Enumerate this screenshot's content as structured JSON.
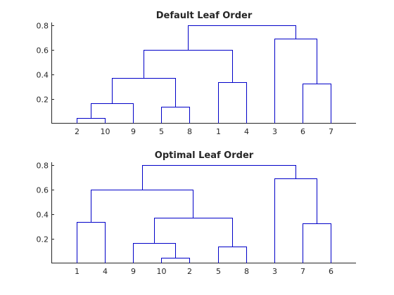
{
  "chart_data": [
    {
      "type": "dendrogram",
      "title": "Default Leaf Order",
      "xlabel": "",
      "ylabel": "",
      "ylim": [
        0.01,
        0.82
      ],
      "yticks": [
        0.2,
        0.4,
        0.6,
        0.8
      ],
      "ytick_labels": [
        "0.2",
        "0.4",
        "0.6",
        "0.8"
      ],
      "leaf_order": [
        "2",
        "10",
        "9",
        "5",
        "8",
        "1",
        "4",
        "3",
        "6",
        "7"
      ],
      "links": [
        {
          "a": 1.0,
          "b": 2.0,
          "ya": 0.0,
          "yb": 0.0,
          "y": 0.05
        },
        {
          "a": 1.5,
          "b": 3.0,
          "ya": 0.05,
          "yb": 0.0,
          "y": 0.17
        },
        {
          "a": 4.0,
          "b": 5.0,
          "ya": 0.0,
          "yb": 0.0,
          "y": 0.14
        },
        {
          "a": 2.25,
          "b": 4.5,
          "ya": 0.17,
          "yb": 0.14,
          "y": 0.37
        },
        {
          "a": 6.0,
          "b": 7.0,
          "ya": 0.0,
          "yb": 0.0,
          "y": 0.34
        },
        {
          "a": 3.375,
          "b": 6.5,
          "ya": 0.37,
          "yb": 0.34,
          "y": 0.6
        },
        {
          "a": 9.0,
          "b": 10.0,
          "ya": 0.0,
          "yb": 0.0,
          "y": 0.33
        },
        {
          "a": 8.0,
          "b": 9.5,
          "ya": 0.0,
          "yb": 0.33,
          "y": 0.69
        },
        {
          "a": 4.9375,
          "b": 8.75,
          "ya": 0.6,
          "yb": 0.69,
          "y": 0.8
        }
      ]
    },
    {
      "type": "dendrogram",
      "title": "Optimal Leaf Order",
      "xlabel": "",
      "ylabel": "",
      "ylim": [
        0.01,
        0.82
      ],
      "yticks": [
        0.2,
        0.4,
        0.6,
        0.8
      ],
      "ytick_labels": [
        "0.2",
        "0.4",
        "0.6",
        "0.8"
      ],
      "leaf_order": [
        "1",
        "4",
        "9",
        "10",
        "2",
        "5",
        "8",
        "3",
        "7",
        "6"
      ],
      "links": [
        {
          "a": 1.0,
          "b": 2.0,
          "ya": 0.0,
          "yb": 0.0,
          "y": 0.34
        },
        {
          "a": 4.0,
          "b": 5.0,
          "ya": 0.0,
          "yb": 0.0,
          "y": 0.05
        },
        {
          "a": 3.0,
          "b": 4.5,
          "ya": 0.0,
          "yb": 0.05,
          "y": 0.17
        },
        {
          "a": 6.0,
          "b": 7.0,
          "ya": 0.0,
          "yb": 0.0,
          "y": 0.14
        },
        {
          "a": 3.75,
          "b": 6.5,
          "ya": 0.17,
          "yb": 0.14,
          "y": 0.37
        },
        {
          "a": 1.5,
          "b": 5.125,
          "ya": 0.34,
          "yb": 0.37,
          "y": 0.6
        },
        {
          "a": 9.0,
          "b": 10.0,
          "ya": 0.0,
          "yb": 0.0,
          "y": 0.33
        },
        {
          "a": 8.0,
          "b": 9.5,
          "ya": 0.0,
          "yb": 0.33,
          "y": 0.69
        },
        {
          "a": 3.3125,
          "b": 8.75,
          "ya": 0.6,
          "yb": 0.69,
          "y": 0.8
        }
      ]
    }
  ],
  "colors": {
    "link": "#0000c8",
    "axis": "#262626",
    "background": "#ffffff"
  }
}
